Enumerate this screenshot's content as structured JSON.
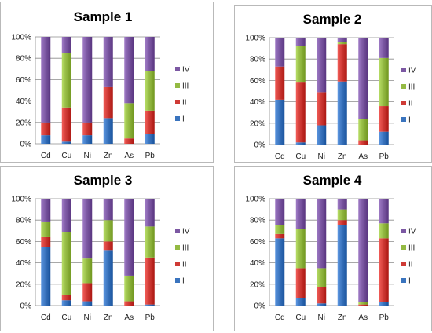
{
  "colors": {
    "I": "#3a74be",
    "II": "#cf3a35",
    "III": "#94ba43",
    "IV": "#7c58a3"
  },
  "chart_data": [
    {
      "type": "bar",
      "stacked": true,
      "title": "Sample 1",
      "categories": [
        "Cd",
        "Cu",
        "Ni",
        "Zn",
        "As",
        "Pb"
      ],
      "ylim": [
        0,
        100
      ],
      "yticks": [
        "0%",
        "20%",
        "40%",
        "60%",
        "80%",
        "100%"
      ],
      "legend_position": "right",
      "grid": true,
      "series": [
        {
          "name": "I",
          "values": [
            8,
            2,
            8,
            24,
            0,
            9
          ]
        },
        {
          "name": "II",
          "values": [
            12,
            32,
            12,
            29,
            5,
            22
          ]
        },
        {
          "name": "III",
          "values": [
            0,
            51,
            0,
            0,
            33,
            37
          ]
        },
        {
          "name": "IV",
          "values": [
            80,
            15,
            80,
            47,
            62,
            32
          ]
        }
      ]
    },
    {
      "type": "bar",
      "stacked": true,
      "title": "Sample 2",
      "categories": [
        "Cd",
        "Cu",
        "Ni",
        "Zn",
        "As",
        "Pb"
      ],
      "ylim": [
        0,
        100
      ],
      "yticks": [
        "0%",
        "20%",
        "40%",
        "60%",
        "80%",
        "100%"
      ],
      "legend_position": "right",
      "grid": true,
      "series": [
        {
          "name": "I",
          "values": [
            42,
            2,
            18,
            59,
            0,
            12
          ]
        },
        {
          "name": "II",
          "values": [
            31,
            56,
            31,
            35,
            4,
            24
          ]
        },
        {
          "name": "III",
          "values": [
            0,
            34,
            0,
            2,
            20,
            45
          ]
        },
        {
          "name": "IV",
          "values": [
            27,
            8,
            51,
            4,
            76,
            19
          ]
        }
      ]
    },
    {
      "type": "bar",
      "stacked": true,
      "title": "Sample 3",
      "categories": [
        "Cd",
        "Cu",
        "Ni",
        "Zn",
        "As",
        "Pb"
      ],
      "ylim": [
        0,
        100
      ],
      "yticks": [
        "0%",
        "20%",
        "40%",
        "60%",
        "80%",
        "100%"
      ],
      "legend_position": "right",
      "grid": true,
      "series": [
        {
          "name": "I",
          "values": [
            55,
            5,
            4,
            52,
            0,
            1
          ]
        },
        {
          "name": "II",
          "values": [
            9,
            5,
            17,
            8,
            4,
            44
          ]
        },
        {
          "name": "III",
          "values": [
            14,
            59,
            23,
            20,
            24,
            29
          ]
        },
        {
          "name": "IV",
          "values": [
            22,
            31,
            56,
            20,
            72,
            26
          ]
        }
      ]
    },
    {
      "type": "bar",
      "stacked": true,
      "title": "Sample 4",
      "categories": [
        "Cd",
        "Cu",
        "Ni",
        "Zn",
        "As",
        "Pb"
      ],
      "ylim": [
        0,
        100
      ],
      "yticks": [
        "0%",
        "20%",
        "40%",
        "60%",
        "80%",
        "100%"
      ],
      "legend_position": "right",
      "grid": true,
      "series": [
        {
          "name": "I",
          "values": [
            63,
            7,
            2,
            75,
            0,
            3
          ]
        },
        {
          "name": "II",
          "values": [
            4,
            28,
            15,
            5,
            1,
            60
          ]
        },
        {
          "name": "III",
          "values": [
            8,
            37,
            18,
            10,
            2,
            14
          ]
        },
        {
          "name": "IV",
          "values": [
            25,
            28,
            65,
            10,
            97,
            23
          ]
        }
      ]
    }
  ]
}
